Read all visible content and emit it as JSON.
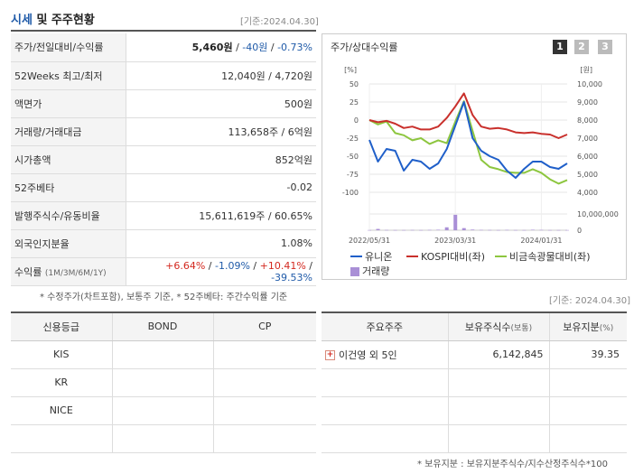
{
  "header": {
    "title_main": "시세",
    "title_rest": " 및 주주현황",
    "date": "[기준:2024.04.30]"
  },
  "info_rows": [
    {
      "label": "주가/전일대비/수익률"
    },
    {
      "label": "52Weeks 최고/최저",
      "value": "12,040원 / 4,720원"
    },
    {
      "label": "액면가",
      "value": "500원"
    },
    {
      "label": "거래량/거래대금",
      "value": "113,658주 / 6억원"
    },
    {
      "label": "시가총액",
      "value": "852억원"
    },
    {
      "label": "52주베타",
      "value": "-0.02"
    },
    {
      "label": "발행주식수/유동비율",
      "value": "15,611,619주 / 60.65%"
    },
    {
      "label": "외국인지분율",
      "value": "1.08%"
    },
    {
      "label": "수익률",
      "label_sub": "(1M/3M/6M/1Y)"
    }
  ],
  "price": {
    "value": "5,460원",
    "sep1": " / ",
    "change": "-40원",
    "sep2": " / ",
    "rate": "-0.73%"
  },
  "returns": {
    "m1": "+6.64%",
    "m3": "-1.09%",
    "m6": "+10.41%",
    "y1": "-39.53%",
    "sep": " / "
  },
  "note1": "* 수정주가(차트포함), 보통주 기준, * 52주베타: 주간수익률 기준",
  "chart": {
    "title": "주가/상대수익률",
    "pages": [
      "1",
      "2",
      "3"
    ],
    "legend": [
      {
        "label": "유니온",
        "color": "#1f5fc9"
      },
      {
        "label": "KOSPI대비(좌)",
        "color": "#c9302c"
      },
      {
        "label": "비금속광물대비(좌)",
        "color": "#8dc63f"
      },
      {
        "label": "거래량",
        "color": "#a98fd6"
      }
    ]
  },
  "chart_data": {
    "type": "line",
    "left_axis": {
      "unit_label": "[%]",
      "ticks": [
        "50",
        "25",
        "0",
        "-25",
        "-50",
        "-75",
        "-100"
      ],
      "ylim": [
        -100,
        50
      ]
    },
    "right_axis": {
      "unit_label": "[원]",
      "ticks": [
        "10,000",
        "9,000",
        "8,000",
        "7,000",
        "6,000",
        "5,000",
        "4,000"
      ],
      "ylim": [
        4000,
        10000
      ]
    },
    "volume_axis": {
      "ticks": [
        "10,000,000",
        "0"
      ],
      "ylim": [
        0,
        10000000
      ]
    },
    "x_ticks": [
      "2022/05/31",
      "2023/03/31",
      "2024/01/31"
    ],
    "x": [
      "2022/05",
      "2022/06",
      "2022/07",
      "2022/08",
      "2022/09",
      "2022/10",
      "2022/11",
      "2022/12",
      "2023/01",
      "2023/02",
      "2023/03",
      "2023/04",
      "2023/05",
      "2023/06",
      "2023/07",
      "2023/08",
      "2023/09",
      "2023/10",
      "2023/11",
      "2023/12",
      "2024/01",
      "2024/02",
      "2024/03",
      "2024/04"
    ],
    "series": [
      {
        "name": "유니온",
        "axis": "right",
        "values": [
          6900,
          5700,
          6400,
          6300,
          5200,
          5800,
          5700,
          5300,
          5600,
          6400,
          7700,
          9000,
          7000,
          6300,
          6000,
          5800,
          5200,
          4800,
          5300,
          5700,
          5700,
          5400,
          5300,
          5600
        ]
      },
      {
        "name": "KOSPI대비(좌)",
        "axis": "left",
        "values": [
          0,
          -3,
          -1,
          -5,
          -11,
          -9,
          -13,
          -13,
          -9,
          3,
          19,
          37,
          7,
          -9,
          -12,
          -11,
          -13,
          -17,
          -18,
          -17,
          -19,
          -20,
          -25,
          -20
        ]
      },
      {
        "name": "비금속광물대비(좌)",
        "axis": "left",
        "values": [
          0,
          -6,
          -2,
          -18,
          -21,
          -28,
          -25,
          -33,
          -28,
          -32,
          -2,
          26,
          -15,
          -55,
          -65,
          -68,
          -72,
          -73,
          -73,
          -68,
          -73,
          -82,
          -88,
          -83
        ]
      },
      {
        "name": "거래량",
        "axis": "volume",
        "values": [
          100000,
          800000,
          150000,
          100000,
          100000,
          150000,
          100000,
          200000,
          300000,
          1800000,
          9500000,
          1300000,
          400000,
          200000,
          150000,
          100000,
          200000,
          100000,
          100000,
          300000,
          200000,
          100000,
          100000,
          100000
        ]
      }
    ]
  },
  "date2": "[기준: 2024.04.30]",
  "credit": {
    "headers": [
      "신용등급",
      "BOND",
      "CP"
    ],
    "rows": [
      [
        "KIS",
        "",
        ""
      ],
      [
        "KR",
        "",
        ""
      ],
      [
        "NICE",
        "",
        ""
      ],
      [
        "",
        "",
        ""
      ]
    ]
  },
  "holders": {
    "headers": [
      "주요주주",
      "보유주식수",
      "(보통)",
      "보유지분",
      "(%)"
    ],
    "rows": [
      {
        "name": "이건영 외 5인",
        "shares": "6,142,845",
        "ratio": "39.35"
      },
      {
        "name": "",
        "shares": "",
        "ratio": ""
      },
      {
        "name": "",
        "shares": "",
        "ratio": ""
      },
      {
        "name": "",
        "shares": "",
        "ratio": ""
      }
    ]
  },
  "note2": "* 보유지분 : 보유지분주식수/지수산정주식수*100"
}
